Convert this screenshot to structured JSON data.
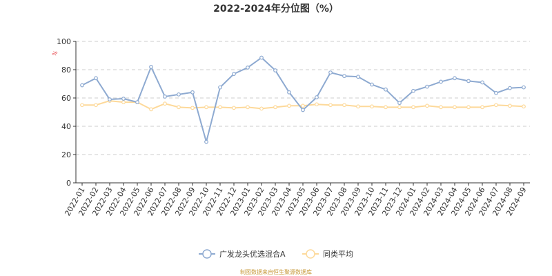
{
  "colors": {
    "series1": "#8eaad1",
    "series2": "#fdd99a",
    "unit": "#e6454a",
    "source": "#c79a3b",
    "grid": "#cccccc",
    "axis": "#333333"
  },
  "source_note": "制图数据来自恒生聚源数据库",
  "chart_data": {
    "type": "line",
    "title": "2022-2024年分位图（%）",
    "ylabel": "%",
    "xlabel": "",
    "ylim": [
      0,
      100
    ],
    "yticks": [
      0,
      20,
      40,
      60,
      80,
      100
    ],
    "grid": true,
    "legend_position": "bottom",
    "categories": [
      "2022-01",
      "2022-02",
      "2022-03",
      "2022-04",
      "2022-05",
      "2022-06",
      "2022-07",
      "2022-08",
      "2022-09",
      "2022-10",
      "2022-11",
      "2022-12",
      "2023-01",
      "2023-02",
      "2023-03",
      "2023-04",
      "2023-05",
      "2023-06",
      "2023-07",
      "2023-08",
      "2023-09",
      "2023-10",
      "2023-11",
      "2023-12",
      "2024-01",
      "2024-02",
      "2024-03",
      "2024-04",
      "2024-05",
      "2024-06",
      "2024-07",
      "2024-08",
      "2024-09"
    ],
    "series": [
      {
        "name": "广发龙头优选混合A",
        "values": [
          69,
          74,
          59,
          59.5,
          57,
          82,
          61,
          62.5,
          64,
          29,
          67.5,
          77,
          81.5,
          88.5,
          79.5,
          64,
          51.5,
          60.5,
          78,
          75.5,
          75,
          69.5,
          66,
          56.5,
          65,
          68,
          71.5,
          74,
          72,
          71,
          63.5,
          67,
          67.5
        ]
      },
      {
        "name": "同类平均",
        "values": [
          55,
          55,
          58,
          57,
          57,
          52,
          56,
          53.5,
          53,
          53.5,
          53.5,
          53,
          53.5,
          52.5,
          53.5,
          54.5,
          54.5,
          55.5,
          55,
          55,
          54,
          54,
          53.5,
          53.5,
          53.5,
          54.5,
          53.5,
          53.5,
          53.5,
          53.5,
          55,
          54.5,
          54
        ]
      }
    ]
  }
}
